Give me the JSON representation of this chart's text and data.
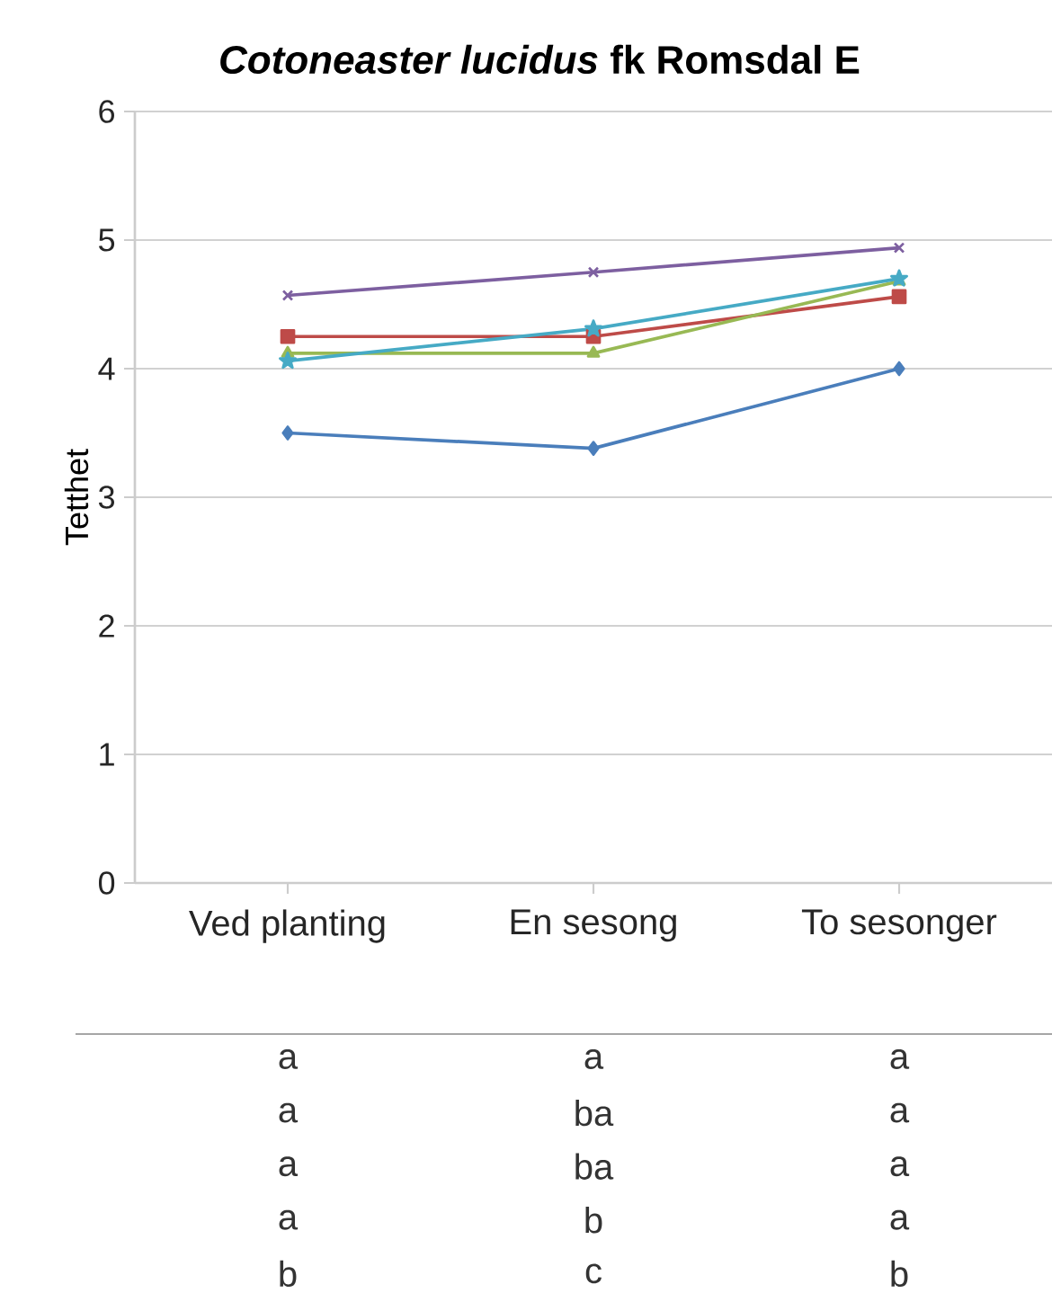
{
  "chart_data": {
    "type": "line",
    "title": "*Cotoneaster lucidus* fk Romsdal E",
    "ylabel": "Tetthet",
    "categories": [
      "Ved planting",
      "En sesong",
      "To sesonger"
    ],
    "series": [
      {
        "color": "#4a7ebb",
        "marker": "diamond",
        "values": [
          3.5,
          3.38,
          4.0
        ]
      },
      {
        "color": "#be4b48",
        "marker": "square",
        "values": [
          4.25,
          4.25,
          4.56
        ]
      },
      {
        "color": "#98b954",
        "marker": "triangle",
        "values": [
          4.12,
          4.12,
          4.68
        ]
      },
      {
        "color": "#7d5fa0",
        "marker": "cross",
        "values": [
          4.57,
          4.75,
          4.94
        ]
      },
      {
        "color": "#46aac5",
        "marker": "star",
        "values": [
          4.06,
          4.31,
          4.7
        ]
      }
    ],
    "ylim": [
      0,
      6
    ],
    "yticks": [
      0,
      1,
      2,
      3,
      4,
      5,
      6
    ],
    "grid": "y",
    "annotations": [
      "a",
      "a",
      "a",
      "a",
      "ba",
      "a",
      "a",
      "ba",
      "a",
      "a",
      "b",
      "a",
      "b",
      "c",
      "b"
    ]
  }
}
